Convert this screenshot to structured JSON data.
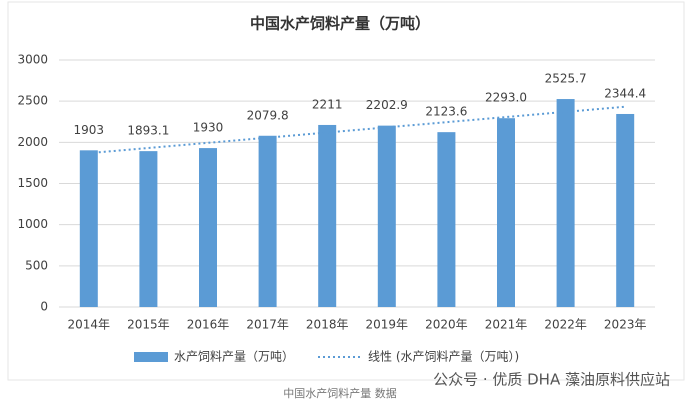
{
  "chart_data": {
    "type": "bar",
    "title": "中国水产饲料产量（万吨）",
    "categories": [
      "2014年",
      "2015年",
      "2016年",
      "2017年",
      "2018年",
      "2019年",
      "2020年",
      "2021年",
      "2022年",
      "2023年"
    ],
    "series": [
      {
        "name": "水产饲料产量（万吨）",
        "color": "#5b9bd5",
        "values": [
          1903,
          1893.1,
          1930,
          2079.8,
          2211,
          2202.9,
          2123.6,
          2293.0,
          2525.7,
          2344.4
        ],
        "value_labels": [
          "1903",
          "1893.1",
          "1930",
          "2079.8",
          "2211",
          "2202.9",
          "2123.6",
          "2293.0",
          "2525.7",
          "2344.4"
        ]
      }
    ],
    "trendline": {
      "name": "线性 (水产饲料产量（万吨）)",
      "type": "linear",
      "color": "#5b9bd5",
      "style": "dotted"
    },
    "ylim": [
      0,
      3000
    ],
    "yticks": [
      0,
      500,
      1000,
      1500,
      2000,
      2500,
      3000
    ],
    "grid": true,
    "legend": "bottom",
    "source": "中国水产饲料产量 数据",
    "watermark": "公众号 · 优质 DHA 藻油原料供应站"
  }
}
